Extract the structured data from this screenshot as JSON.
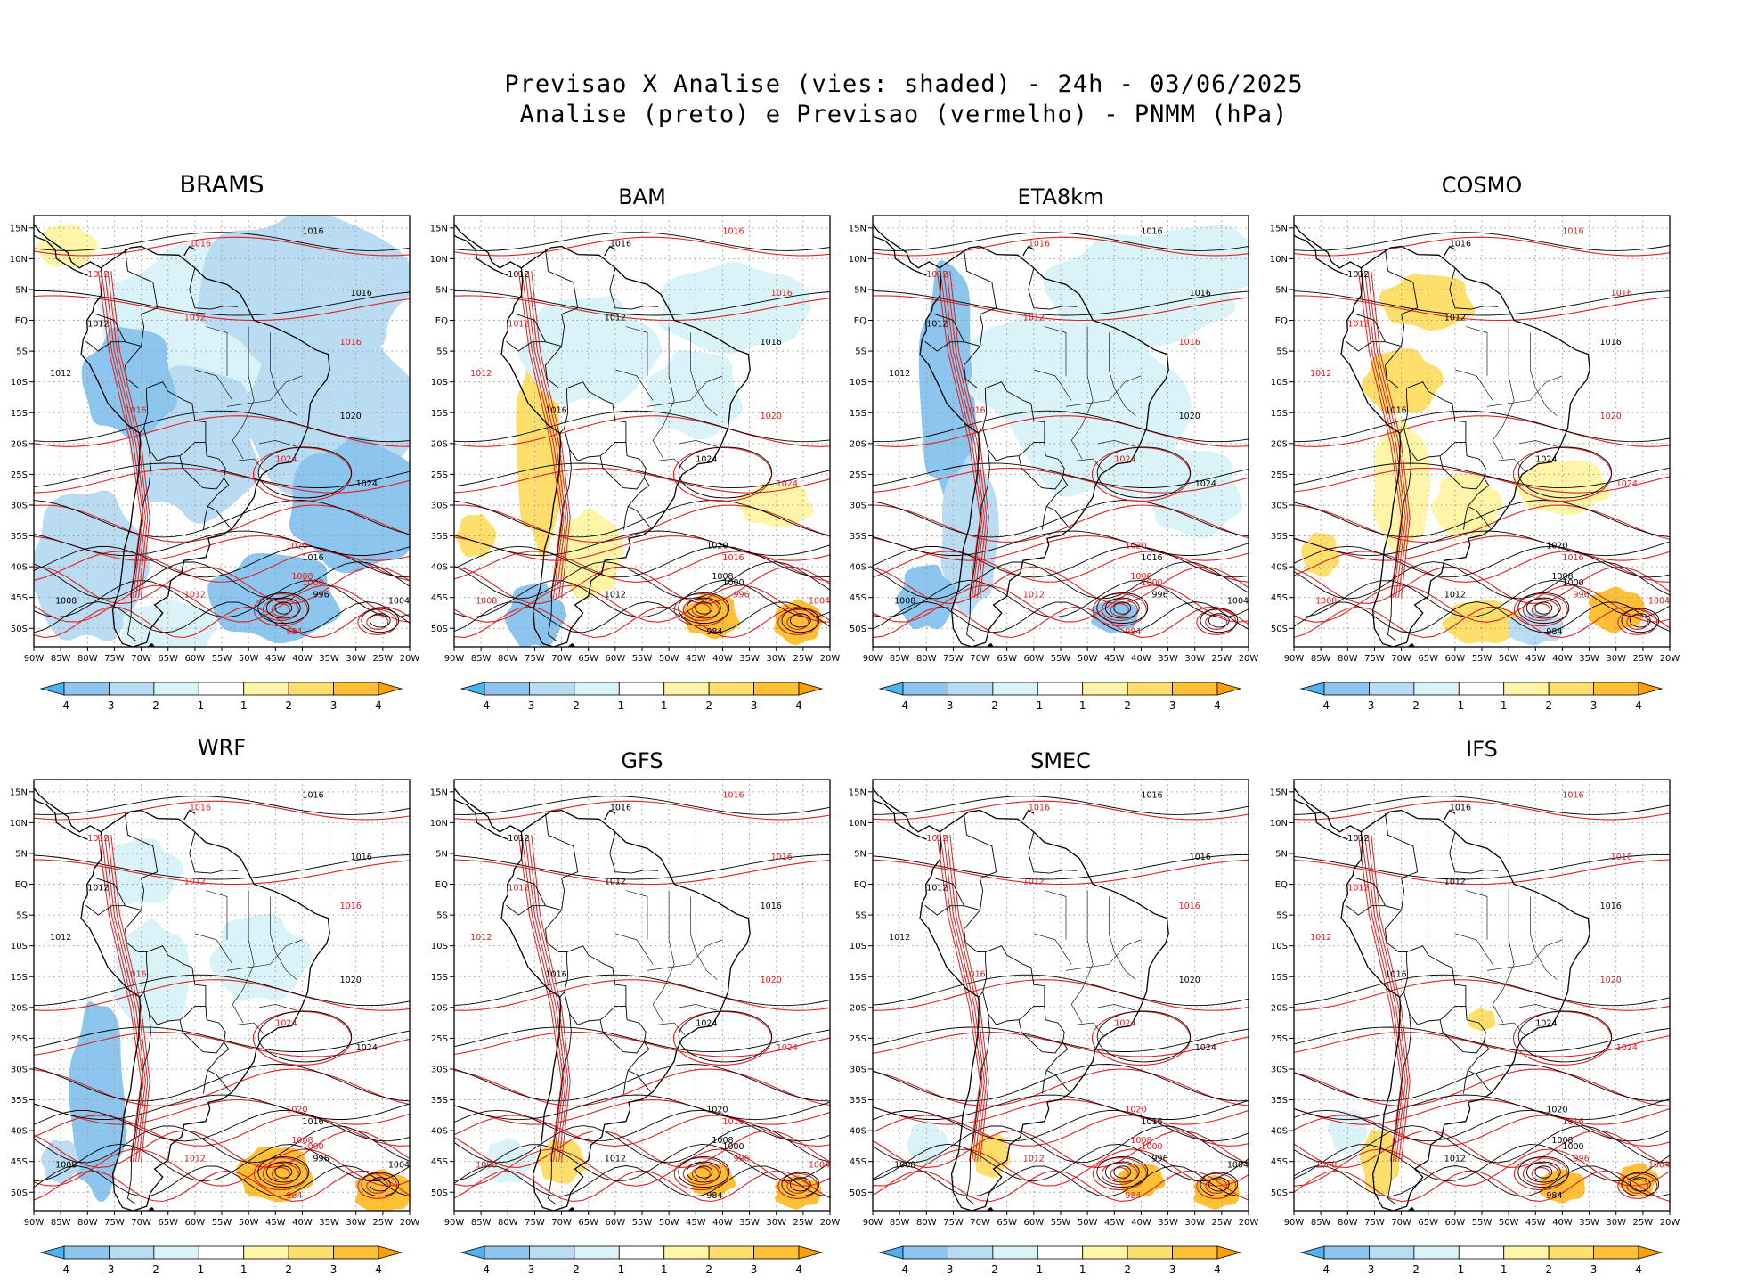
{
  "header": {
    "line1": "Previsao X Analise (vies: shaded) - 24h - 03/06/2025",
    "line2": "Analise (preto) e Previsao (vermelho) - PNMM (hPa)"
  },
  "panels": [
    {
      "id": "brams",
      "title": "BRAMS"
    },
    {
      "id": "bam",
      "title": "BAM"
    },
    {
      "id": "eta8km",
      "title": "ETA8km"
    },
    {
      "id": "cosmo",
      "title": "COSMO"
    },
    {
      "id": "wrf",
      "title": "WRF"
    },
    {
      "id": "gfs",
      "title": "GFS"
    },
    {
      "id": "smec",
      "title": "SMEC"
    },
    {
      "id": "ifs",
      "title": "IFS"
    }
  ],
  "axes": {
    "lat_labels": [
      "15N",
      "10N",
      "5N",
      "EQ",
      "5S",
      "10S",
      "15S",
      "20S",
      "25S",
      "30S",
      "35S",
      "40S",
      "45S",
      "50S"
    ],
    "lon_labels": [
      "90W",
      "85W",
      "80W",
      "75W",
      "70W",
      "65W",
      "60W",
      "55W",
      "50W",
      "45W",
      "40W",
      "35W",
      "30W",
      "25W",
      "20W"
    ],
    "lat_range": [
      -53,
      17
    ],
    "lon_range": [
      -90,
      -20
    ]
  },
  "colorbar": {
    "labels": [
      "-4",
      "-3",
      "-2",
      "-1",
      "1",
      "2",
      "3",
      "4"
    ],
    "colors": [
      "#4eb3f0",
      "#8cc6ee",
      "#b9dcf2",
      "#d9f3f8",
      "#ffffff",
      "#fff5a6",
      "#ffdf6b",
      "#ffc035",
      "#ff9f00"
    ]
  },
  "chart_data": {
    "type": "heatmap",
    "title": "Previsao X Analise (vies: shaded) - 24h - 03/06/2025",
    "subtitle": "Analise (preto) e Previsao (vermelho) - PNMM (hPa)",
    "variable": "PNMM (hPa)",
    "bias_levels": [
      -4,
      -3,
      -2,
      -1,
      1,
      2,
      3,
      4
    ],
    "analysis_isobars_color": "#000000",
    "forecast_isobars_color": "#e02020",
    "isobar_labels": [
      {
        "v": "1016",
        "lon": -61,
        "lat": 12
      },
      {
        "v": "1016",
        "lon": -40,
        "lat": 14
      },
      {
        "v": "1012",
        "lon": -80,
        "lat": 7
      },
      {
        "v": "1016",
        "lon": -31,
        "lat": 4
      },
      {
        "v": "1012",
        "lon": -62,
        "lat": 0
      },
      {
        "v": "1012",
        "lon": -80,
        "lat": -1
      },
      {
        "v": "1016",
        "lon": -33,
        "lat": -4
      },
      {
        "v": "1012",
        "lon": -87,
        "lat": -9
      },
      {
        "v": "1016",
        "lon": -73,
        "lat": -15
      },
      {
        "v": "1020",
        "lon": -33,
        "lat": -16
      },
      {
        "v": "1024",
        "lon": -45,
        "lat": -23
      },
      {
        "v": "1024",
        "lon": -30,
        "lat": -27
      },
      {
        "v": "1020",
        "lon": -43,
        "lat": -37
      },
      {
        "v": "1016",
        "lon": -40,
        "lat": -39
      },
      {
        "v": "1012",
        "lon": -62,
        "lat": -45
      },
      {
        "v": "1008",
        "lon": -86,
        "lat": -46
      },
      {
        "v": "1008",
        "lon": -42,
        "lat": -42
      },
      {
        "v": "1004",
        "lon": -24,
        "lat": -46
      },
      {
        "v": "1000",
        "lon": -40,
        "lat": -43
      },
      {
        "v": "996",
        "lon": -38,
        "lat": -45
      },
      {
        "v": "984",
        "lon": -43,
        "lat": -51
      }
    ]
  }
}
